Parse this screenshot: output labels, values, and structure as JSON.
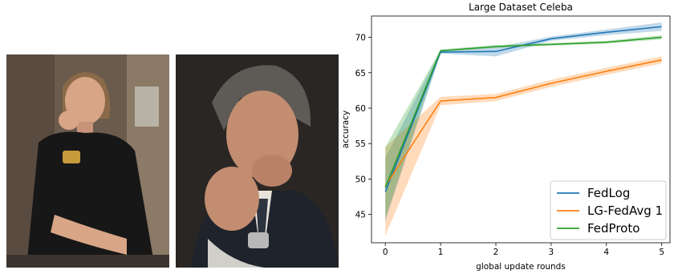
{
  "photos": [
    {
      "description_icon": "portrait-photo-woman",
      "palette": {
        "bg": "#6a5a4c",
        "cloth": "#161616",
        "skin": "#d8a587",
        "hair": "#8a6a48"
      }
    },
    {
      "description_icon": "portrait-photo-man",
      "palette": {
        "bg": "#2a2624",
        "cloth": "#1f232c",
        "skin": "#c28d70",
        "hair": "#5c5955"
      }
    }
  ],
  "chart_data": {
    "type": "line",
    "title": "Large Dataset Celeba",
    "xlabel": "global update rounds",
    "ylabel": "accuracy",
    "x": [
      0,
      1,
      2,
      3,
      4,
      5
    ],
    "xlim": [
      -0.25,
      5.15
    ],
    "ylim": [
      41,
      73
    ],
    "xticks": [
      0,
      1,
      2,
      3,
      4,
      5
    ],
    "yticks": [
      45,
      50,
      55,
      60,
      65,
      70
    ],
    "grid": false,
    "legend_position": "bottom-right",
    "series": [
      {
        "name": "FedLog",
        "color": "#1f77b4",
        "values": [
          48.2,
          67.9,
          68.0,
          69.8,
          70.7,
          71.5
        ],
        "lower": [
          44.0,
          67.7,
          67.3,
          69.5,
          70.3,
          70.9
        ],
        "upper": [
          53.0,
          68.2,
          68.6,
          70.1,
          71.1,
          72.1
        ]
      },
      {
        "name": "LG-FedAvg 1",
        "color": "#ff7f0e",
        "values": [
          49.0,
          61.0,
          61.5,
          63.5,
          65.2,
          66.8
        ],
        "lower": [
          42.0,
          60.4,
          61.0,
          63.0,
          64.7,
          66.3
        ],
        "upper": [
          54.5,
          61.6,
          62.0,
          64.0,
          65.7,
          67.3
        ]
      },
      {
        "name": "FedProto",
        "color": "#2ca02c",
        "values": [
          48.8,
          68.1,
          68.7,
          69.0,
          69.3,
          70.0
        ],
        "lower": [
          44.5,
          67.9,
          68.5,
          68.8,
          69.1,
          69.7
        ],
        "upper": [
          54.5,
          68.3,
          68.9,
          69.2,
          69.5,
          70.3
        ]
      }
    ]
  }
}
